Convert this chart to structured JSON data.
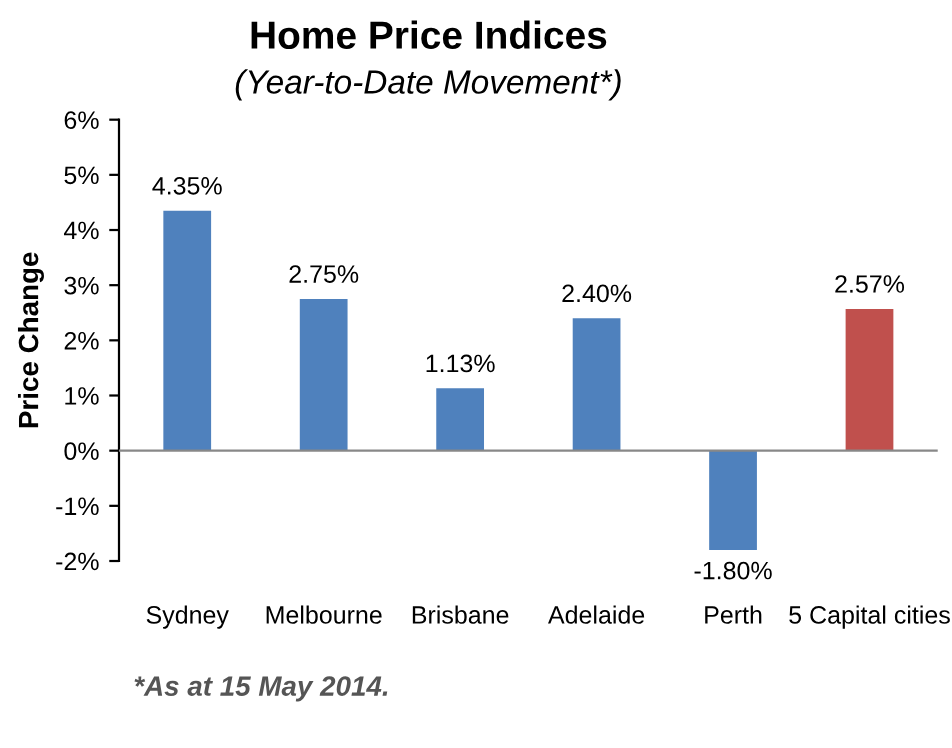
{
  "chart_data": {
    "type": "bar",
    "title": "Home Price Indices",
    "subtitle": "(Year-to-Date Movement*)",
    "ylabel": "Price Change",
    "categories": [
      "Sydney",
      "Melbourne",
      "Brisbane",
      "Adelaide",
      "Perth",
      "5 Capital cities"
    ],
    "values": [
      4.35,
      2.75,
      1.13,
      2.4,
      -1.8,
      2.57
    ],
    "colors": [
      "#4f81bd",
      "#4f81bd",
      "#4f81bd",
      "#4f81bd",
      "#4f81bd",
      "#c0504d"
    ],
    "value_labels": [
      "4.35%",
      "2.75%",
      "1.13%",
      "2.40%",
      "-1.80%",
      "2.57%"
    ],
    "ylim": [
      -2,
      6
    ],
    "yticks": [
      {
        "value": -2,
        "label": "-2%"
      },
      {
        "value": -1,
        "label": "-1%"
      },
      {
        "value": 0,
        "label": "0%"
      },
      {
        "value": 1,
        "label": "1%"
      },
      {
        "value": 2,
        "label": "2%"
      },
      {
        "value": 3,
        "label": "3%"
      },
      {
        "value": 4,
        "label": "4%"
      },
      {
        "value": 5,
        "label": "5%"
      },
      {
        "value": 6,
        "label": "6%"
      }
    ],
    "annotations": [
      "*As at 15 May 2014."
    ]
  }
}
